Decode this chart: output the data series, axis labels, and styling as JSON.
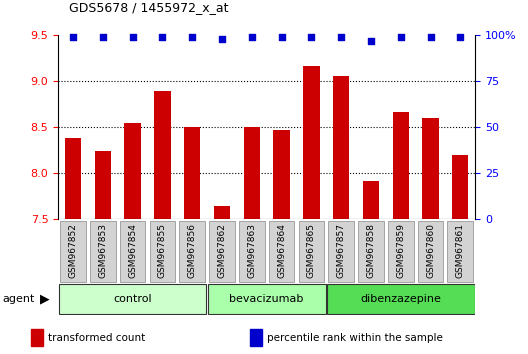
{
  "title": "GDS5678 / 1455972_x_at",
  "samples": [
    "GSM967852",
    "GSM967853",
    "GSM967854",
    "GSM967855",
    "GSM967856",
    "GSM967862",
    "GSM967863",
    "GSM967864",
    "GSM967865",
    "GSM967857",
    "GSM967858",
    "GSM967859",
    "GSM967860",
    "GSM967861"
  ],
  "bar_values": [
    8.38,
    8.24,
    8.55,
    8.9,
    8.5,
    7.65,
    8.5,
    8.47,
    9.17,
    9.06,
    7.92,
    8.67,
    8.6,
    8.2
  ],
  "percentile_values": [
    99,
    99,
    99,
    99,
    99,
    98,
    99,
    99,
    99,
    99,
    97,
    99,
    99,
    99
  ],
  "groups": [
    {
      "name": "control",
      "start": 0,
      "end": 5,
      "color": "#ccffcc"
    },
    {
      "name": "bevacizumab",
      "start": 5,
      "end": 9,
      "color": "#aaffaa"
    },
    {
      "name": "dibenzazepine",
      "start": 9,
      "end": 14,
      "color": "#55dd55"
    }
  ],
  "bar_color": "#cc0000",
  "dot_color": "#0000cc",
  "ylim_left": [
    7.5,
    9.5
  ],
  "ylim_right": [
    0,
    100
  ],
  "yticks_left": [
    7.5,
    8.0,
    8.5,
    9.0,
    9.5
  ],
  "yticks_right": [
    0,
    25,
    50,
    75,
    100
  ],
  "grid_values": [
    8.0,
    8.5,
    9.0
  ],
  "bar_width": 0.55,
  "xticklabel_bg": "#d3d3d3",
  "legend_items": [
    {
      "label": "transformed count",
      "color": "#cc0000"
    },
    {
      "label": "percentile rank within the sample",
      "color": "#0000cc"
    }
  ]
}
